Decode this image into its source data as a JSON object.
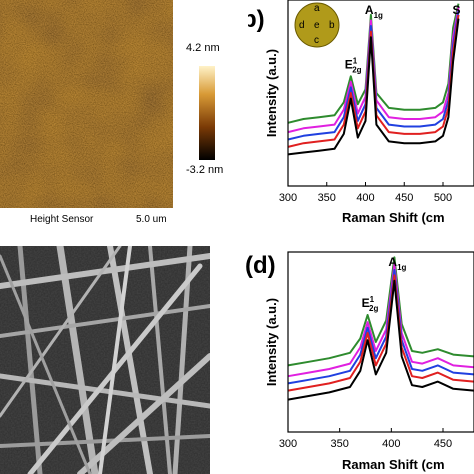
{
  "panel_a": {
    "colorbar_max": "4.2 nm",
    "colorbar_min": "-3.2 nm",
    "channel_label": "Height Sensor",
    "scan_size": "5.0 um",
    "colors": {
      "dark": "#3a1400",
      "mid": "#8a4a08",
      "light": "#d2a040"
    }
  },
  "chart_data": [
    {
      "type": "line",
      "panel_label": "(b)",
      "xlabel": "Raman Shift (cm",
      "ylabel": "Intensity (a.u.)",
      "xlim": [
        300,
        540
      ],
      "x_ticks": [
        300,
        350,
        400,
        450,
        500
      ],
      "peak_labels": [
        {
          "main": "E",
          "sup": "1",
          "sub": "2g",
          "x": 381
        },
        {
          "main": "A",
          "sub": "1g",
          "x": 407
        },
        {
          "main": "S",
          "x": 520
        }
      ],
      "inset": {
        "labels": [
          "a",
          "d",
          "e",
          "b",
          "c"
        ],
        "fill": "#b09a1a"
      },
      "series": [
        {
          "color": "#2e8b2e",
          "values": [
            [
              300,
              0.34
            ],
            [
              320,
              0.36
            ],
            [
              340,
              0.37
            ],
            [
              360,
              0.38
            ],
            [
              372,
              0.45
            ],
            [
              381,
              0.59
            ],
            [
              390,
              0.44
            ],
            [
              400,
              0.52
            ],
            [
              407,
              0.92
            ],
            [
              414,
              0.5
            ],
            [
              430,
              0.42
            ],
            [
              450,
              0.41
            ],
            [
              470,
              0.41
            ],
            [
              490,
              0.42
            ],
            [
              500,
              0.45
            ],
            [
              507,
              0.55
            ],
            [
              513,
              0.85
            ],
            [
              520,
              0.98
            ]
          ]
        },
        {
          "color": "#e020e0",
          "values": [
            [
              300,
              0.29
            ],
            [
              320,
              0.31
            ],
            [
              340,
              0.32
            ],
            [
              360,
              0.33
            ],
            [
              372,
              0.41
            ],
            [
              381,
              0.56
            ],
            [
              390,
              0.39
            ],
            [
              400,
              0.48
            ],
            [
              407,
              0.89
            ],
            [
              414,
              0.46
            ],
            [
              430,
              0.37
            ],
            [
              450,
              0.36
            ],
            [
              470,
              0.36
            ],
            [
              490,
              0.37
            ],
            [
              500,
              0.4
            ],
            [
              507,
              0.5
            ],
            [
              513,
              0.8
            ],
            [
              520,
              0.96
            ]
          ]
        },
        {
          "color": "#2040e0",
          "values": [
            [
              300,
              0.25
            ],
            [
              320,
              0.27
            ],
            [
              340,
              0.28
            ],
            [
              360,
              0.29
            ],
            [
              372,
              0.37
            ],
            [
              381,
              0.53
            ],
            [
              390,
              0.35
            ],
            [
              400,
              0.44
            ],
            [
              407,
              0.86
            ],
            [
              414,
              0.42
            ],
            [
              430,
              0.33
            ],
            [
              450,
              0.32
            ],
            [
              470,
              0.32
            ],
            [
              490,
              0.33
            ],
            [
              500,
              0.36
            ],
            [
              507,
              0.46
            ],
            [
              513,
              0.76
            ],
            [
              520,
              0.94
            ]
          ]
        },
        {
          "color": "#e02020",
          "values": [
            [
              300,
              0.21
            ],
            [
              320,
              0.23
            ],
            [
              340,
              0.24
            ],
            [
              360,
              0.25
            ],
            [
              372,
              0.33
            ],
            [
              381,
              0.5
            ],
            [
              390,
              0.31
            ],
            [
              400,
              0.4
            ],
            [
              407,
              0.83
            ],
            [
              414,
              0.38
            ],
            [
              430,
              0.29
            ],
            [
              450,
              0.28
            ],
            [
              470,
              0.28
            ],
            [
              490,
              0.29
            ],
            [
              500,
              0.32
            ],
            [
              507,
              0.42
            ],
            [
              513,
              0.72
            ],
            [
              520,
              0.92
            ]
          ]
        },
        {
          "color": "#000000",
          "values": [
            [
              300,
              0.17
            ],
            [
              320,
              0.18
            ],
            [
              340,
              0.19
            ],
            [
              360,
              0.2
            ],
            [
              372,
              0.28
            ],
            [
              381,
              0.47
            ],
            [
              390,
              0.26
            ],
            [
              400,
              0.35
            ],
            [
              407,
              0.8
            ],
            [
              414,
              0.33
            ],
            [
              430,
              0.24
            ],
            [
              450,
              0.23
            ],
            [
              470,
              0.23
            ],
            [
              490,
              0.24
            ],
            [
              500,
              0.27
            ],
            [
              507,
              0.37
            ],
            [
              513,
              0.67
            ],
            [
              520,
              0.9
            ]
          ]
        }
      ]
    },
    {
      "type": "line",
      "panel_label": "(d)",
      "xlabel": "Raman Shift (cm",
      "ylabel": "Intensity (a.u.)",
      "xlim": [
        300,
        480
      ],
      "x_ticks": [
        300,
        350,
        400,
        450
      ],
      "peak_labels": [
        {
          "main": "E",
          "sup": "1",
          "sub": "2g",
          "x": 377
        },
        {
          "main": "A",
          "sub": "1g",
          "x": 403
        }
      ],
      "series": [
        {
          "color": "#2e8b2e",
          "values": [
            [
              300,
              0.37
            ],
            [
              320,
              0.39
            ],
            [
              340,
              0.41
            ],
            [
              360,
              0.44
            ],
            [
              370,
              0.52
            ],
            [
              377,
              0.65
            ],
            [
              385,
              0.5
            ],
            [
              395,
              0.62
            ],
            [
              403,
              0.97
            ],
            [
              410,
              0.6
            ],
            [
              420,
              0.45
            ],
            [
              430,
              0.44
            ],
            [
              445,
              0.46
            ],
            [
              460,
              0.43
            ],
            [
              480,
              0.42
            ]
          ]
        },
        {
          "color": "#e020e0",
          "values": [
            [
              300,
              0.31
            ],
            [
              320,
              0.33
            ],
            [
              340,
              0.35
            ],
            [
              360,
              0.38
            ],
            [
              370,
              0.47
            ],
            [
              377,
              0.61
            ],
            [
              385,
              0.45
            ],
            [
              395,
              0.57
            ],
            [
              403,
              0.93
            ],
            [
              410,
              0.55
            ],
            [
              420,
              0.39
            ],
            [
              430,
              0.38
            ],
            [
              445,
              0.41
            ],
            [
              460,
              0.37
            ],
            [
              480,
              0.36
            ]
          ]
        },
        {
          "color": "#2040e0",
          "values": [
            [
              300,
              0.27
            ],
            [
              320,
              0.29
            ],
            [
              340,
              0.31
            ],
            [
              360,
              0.34
            ],
            [
              370,
              0.43
            ],
            [
              377,
              0.58
            ],
            [
              385,
              0.41
            ],
            [
              395,
              0.53
            ],
            [
              403,
              0.9
            ],
            [
              410,
              0.51
            ],
            [
              420,
              0.35
            ],
            [
              430,
              0.34
            ],
            [
              445,
              0.37
            ],
            [
              460,
              0.33
            ],
            [
              480,
              0.32
            ]
          ]
        },
        {
          "color": "#e02020",
          "values": [
            [
              300,
              0.23
            ],
            [
              320,
              0.25
            ],
            [
              340,
              0.27
            ],
            [
              360,
              0.3
            ],
            [
              370,
              0.39
            ],
            [
              377,
              0.55
            ],
            [
              385,
              0.37
            ],
            [
              395,
              0.49
            ],
            [
              403,
              0.87
            ],
            [
              410,
              0.47
            ],
            [
              420,
              0.31
            ],
            [
              430,
              0.3
            ],
            [
              445,
              0.33
            ],
            [
              460,
              0.29
            ],
            [
              480,
              0.28
            ]
          ]
        },
        {
          "color": "#000000",
          "values": [
            [
              300,
              0.18
            ],
            [
              320,
              0.2
            ],
            [
              340,
              0.22
            ],
            [
              360,
              0.25
            ],
            [
              370,
              0.34
            ],
            [
              377,
              0.51
            ],
            [
              385,
              0.32
            ],
            [
              395,
              0.44
            ],
            [
              403,
              0.84
            ],
            [
              410,
              0.42
            ],
            [
              420,
              0.26
            ],
            [
              430,
              0.25
            ],
            [
              445,
              0.28
            ],
            [
              460,
              0.24
            ],
            [
              480,
              0.23
            ]
          ]
        }
      ]
    }
  ]
}
